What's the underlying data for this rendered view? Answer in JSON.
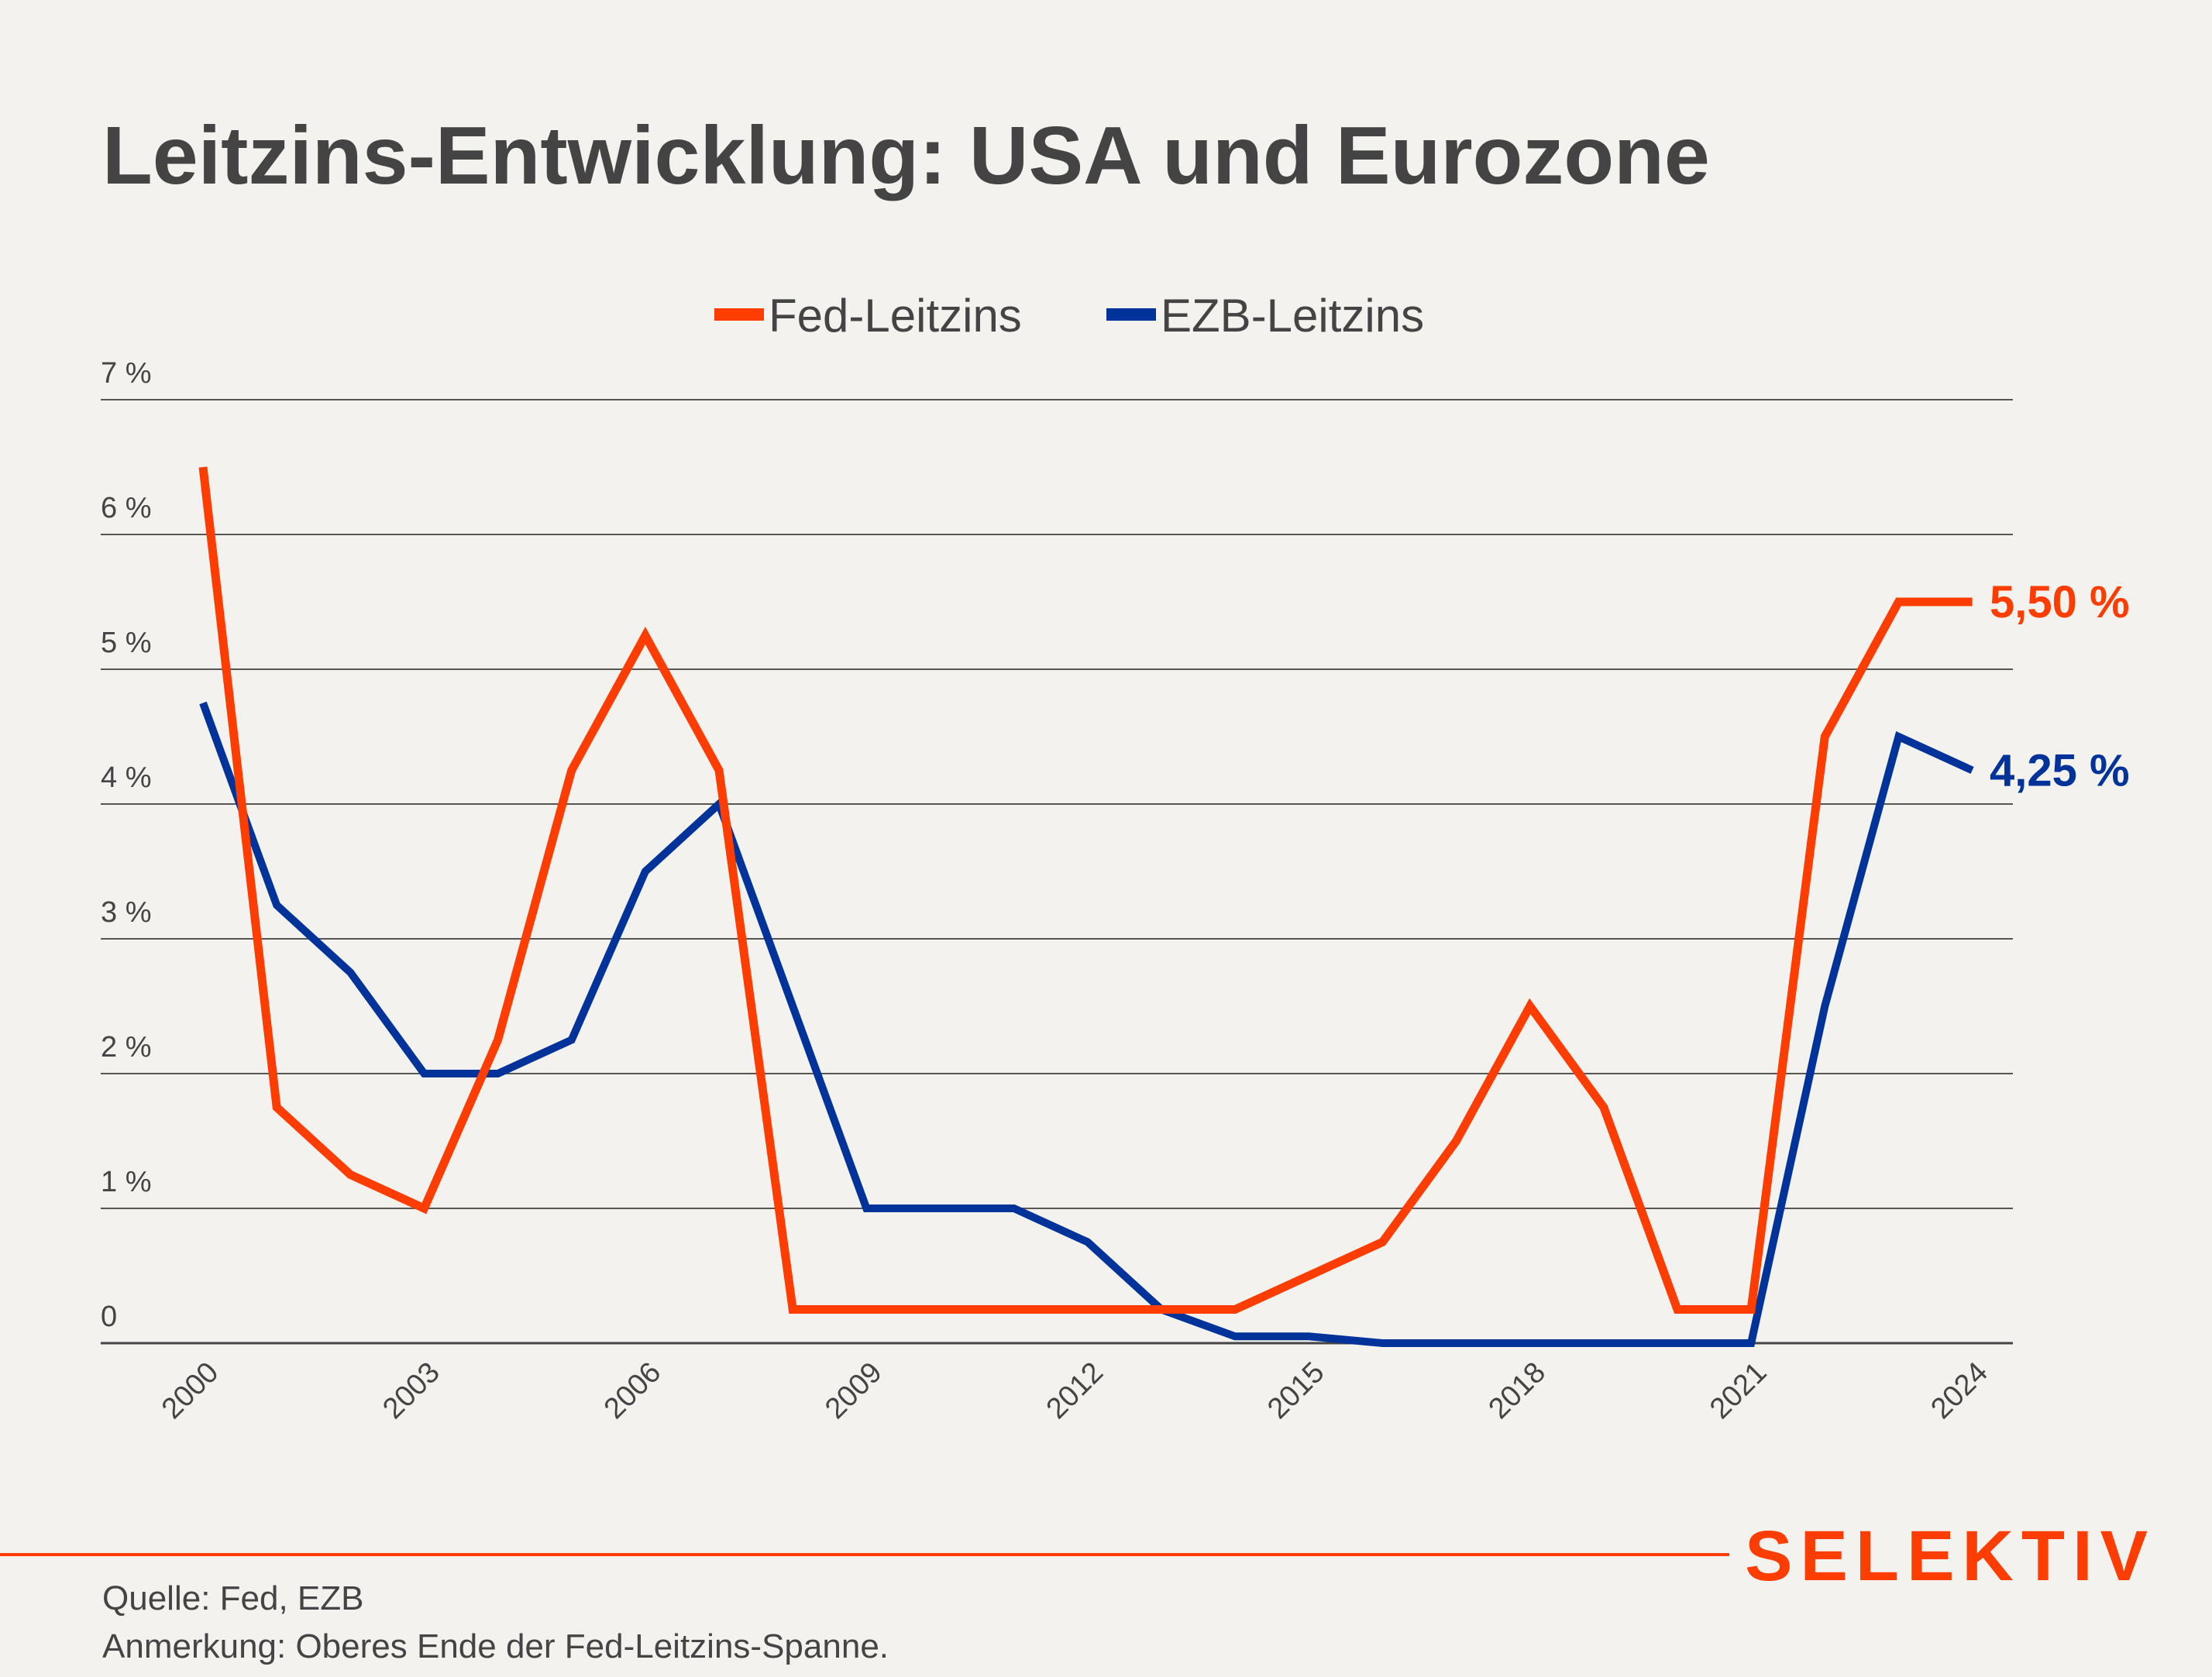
{
  "chart_data": {
    "type": "line",
    "title": "Leitzins-Entwicklung: USA und Eurozone",
    "xlabel": "",
    "ylabel": "",
    "x": [
      2000,
      2001,
      2002,
      2003,
      2004,
      2005,
      2006,
      2007,
      2008,
      2009,
      2010,
      2011,
      2012,
      2013,
      2014,
      2015,
      2016,
      2017,
      2018,
      2019,
      2020,
      2021,
      2022,
      2023,
      2024
    ],
    "xticks": [
      "2000",
      "2003",
      "2006",
      "2009",
      "2012",
      "2015",
      "2018",
      "2021",
      "2024"
    ],
    "yticks": [
      "0",
      "1 %",
      "2 %",
      "3 %",
      "4 %",
      "5 %",
      "6 %",
      "7 %"
    ],
    "ylim": [
      0,
      7
    ],
    "grid": true,
    "legend_position": "top-center",
    "series": [
      {
        "name": "Fed-Leitzins",
        "color": "#ff3d00",
        "values": [
          6.5,
          1.75,
          1.25,
          1.0,
          2.25,
          4.25,
          5.25,
          4.25,
          0.25,
          0.25,
          0.25,
          0.25,
          0.25,
          0.25,
          0.25,
          0.5,
          0.75,
          1.5,
          2.5,
          1.75,
          0.25,
          0.25,
          4.5,
          5.5,
          5.5
        ],
        "end_label": "5,50 %"
      },
      {
        "name": "EZB-Leitzins",
        "color": "#00339a",
        "values": [
          4.75,
          3.25,
          2.75,
          2.0,
          2.0,
          2.25,
          3.5,
          4.0,
          2.5,
          1.0,
          1.0,
          1.0,
          0.75,
          0.25,
          0.05,
          0.05,
          0,
          0,
          0,
          0,
          0,
          0,
          2.5,
          4.5,
          4.25
        ],
        "end_label": "4,25 %"
      }
    ]
  },
  "footer": {
    "source": "Quelle: Fed, EZB",
    "note": "Anmerkung: Oberes Ende der Fed-Leitzins-Spanne.",
    "logo": "SELEKTIV"
  }
}
